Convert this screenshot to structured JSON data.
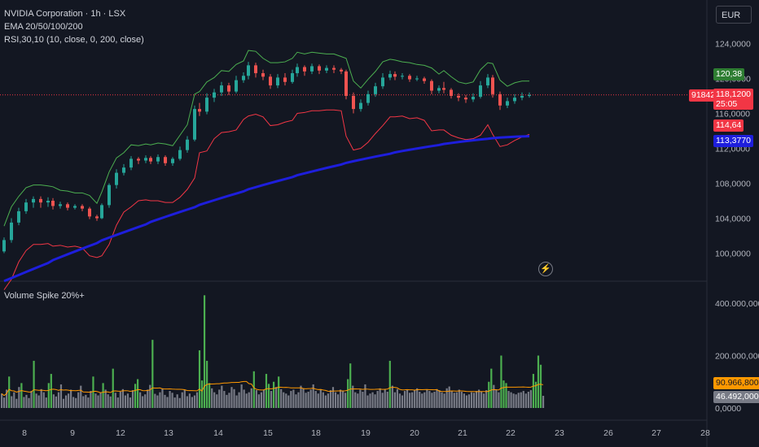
{
  "header": {
    "symbol_line": "NVIDIA Corporation · 1h · LSX",
    "indicator_ema": "EMA 20/50/100/200",
    "indicator_rsi": "RSI,30,10 (10, close, 0, 200, close)",
    "volume_label": "Volume Spike 20%+",
    "currency": "EUR"
  },
  "price_tags": {
    "green_label": "120,38",
    "current_price": "118,1200",
    "countdown": "25:05",
    "left_badge": "918422",
    "red_label": "114,64",
    "ema200_label": "113,3770",
    "volume_ma_label": "90.966,8000",
    "volume_label": "46.492,0000"
  },
  "colors": {
    "background": "#131722",
    "up": "#26a69a",
    "down": "#ef5350",
    "green_line": "#4caf50",
    "red_line": "#f23645",
    "ema200": "#1e1edc",
    "vol_up": "#4caf50",
    "vol_down": "#787b86",
    "vol_ma": "#ff9800"
  },
  "chart_data": [
    {
      "type": "candlestick",
      "y_ticks": [
        "100,0000",
        "104,0000",
        "108,0000",
        "112,0000",
        "116,0000",
        "120,0000",
        "124,0000"
      ],
      "ylim": [
        96.8,
        129.5
      ],
      "x_ticks": [
        "8",
        "9",
        "12",
        "13",
        "14",
        "15",
        "18",
        "19",
        "20",
        "21",
        "22",
        "23",
        "26",
        "27",
        "28"
      ],
      "days": [
        {
          "label": "8",
          "candles": [
            [
              100.2,
              101.5,
              100.0,
              101.8
            ],
            [
              101.5,
              103.5,
              101.2,
              104.0
            ],
            [
              103.5,
              104.8,
              103.2,
              105.2
            ],
            [
              104.8,
              105.8,
              104.5,
              106.2
            ],
            [
              105.8,
              106.2,
              105.2,
              106.5
            ],
            [
              106.2,
              105.8,
              105.2,
              106.5
            ],
            [
              105.8,
              106.0,
              105.3,
              106.4
            ]
          ]
        },
        {
          "label": "9",
          "candles": [
            [
              106.0,
              105.4,
              105.0,
              106.3
            ],
            [
              105.4,
              105.6,
              105.1,
              105.9
            ],
            [
              105.6,
              105.2,
              104.9,
              105.8
            ],
            [
              105.2,
              105.4,
              105.0,
              105.6
            ],
            [
              105.4,
              105.1,
              104.8,
              105.6
            ],
            [
              105.1,
              104.2,
              103.9,
              105.3
            ],
            [
              104.2,
              104.0,
              103.7,
              104.4
            ]
          ]
        },
        {
          "label": "12",
          "candles": [
            [
              104.0,
              105.5,
              103.9,
              105.7
            ],
            [
              105.5,
              107.8,
              105.2,
              108.0
            ],
            [
              107.8,
              109.2,
              107.4,
              109.6
            ],
            [
              109.2,
              109.8,
              108.9,
              110.2
            ],
            [
              109.8,
              110.8,
              109.5,
              111.1
            ],
            [
              110.8,
              110.6,
              110.2,
              111.0
            ],
            [
              110.6,
              110.9,
              110.3,
              111.2
            ]
          ]
        },
        {
          "label": "13",
          "candles": [
            [
              110.9,
              110.5,
              110.2,
              111.1
            ],
            [
              110.5,
              111.0,
              110.2,
              111.3
            ],
            [
              111.0,
              110.3,
              110.0,
              111.2
            ],
            [
              110.3,
              110.8,
              110.0,
              111.0
            ],
            [
              110.8,
              111.8,
              110.6,
              112.2
            ],
            [
              111.8,
              113.0,
              111.5,
              113.4
            ],
            [
              113.0,
              116.5,
              112.8,
              116.9
            ]
          ]
        },
        {
          "label": "14",
          "candles": [
            [
              116.5,
              116.2,
              115.7,
              117.2
            ],
            [
              116.2,
              117.8,
              115.9,
              118.3
            ],
            [
              117.8,
              118.4,
              117.3,
              118.8
            ],
            [
              118.4,
              119.2,
              118.0,
              119.6
            ],
            [
              119.2,
              118.5,
              118.1,
              119.5
            ],
            [
              118.5,
              119.8,
              118.3,
              120.3
            ],
            [
              119.8,
              120.3,
              119.5,
              120.7
            ]
          ]
        },
        {
          "label": "15",
          "candles": [
            [
              120.3,
              121.5,
              119.9,
              121.9
            ],
            [
              121.5,
              120.6,
              120.1,
              121.8
            ],
            [
              120.6,
              120.2,
              119.8,
              121.0
            ],
            [
              120.2,
              119.2,
              118.8,
              120.5
            ],
            [
              119.2,
              120.1,
              118.9,
              120.5
            ],
            [
              120.1,
              119.6,
              119.2,
              120.6
            ],
            [
              119.6,
              120.6,
              119.4,
              121.0
            ]
          ]
        },
        {
          "label": "18",
          "candles": [
            [
              120.6,
              121.3,
              120.2,
              121.7
            ],
            [
              121.3,
              120.8,
              120.3,
              121.5
            ],
            [
              120.8,
              121.4,
              120.5,
              121.7
            ],
            [
              121.4,
              120.9,
              120.5,
              121.6
            ],
            [
              120.9,
              121.2,
              120.6,
              121.5
            ],
            [
              121.2,
              121.0,
              120.6,
              121.5
            ],
            [
              121.0,
              120.8,
              120.5,
              121.2
            ]
          ]
        },
        {
          "label": "19",
          "candles": [
            [
              120.8,
              118.0,
              117.6,
              121.0
            ],
            [
              118.0,
              116.5,
              116.0,
              118.4
            ],
            [
              116.5,
              117.2,
              116.2,
              117.6
            ],
            [
              117.2,
              118.2,
              116.9,
              118.6
            ],
            [
              118.2,
              119.1,
              117.9,
              119.5
            ],
            [
              119.1,
              120.1,
              118.8,
              120.6
            ],
            [
              120.1,
              120.5,
              119.8,
              120.9
            ]
          ]
        },
        {
          "label": "20",
          "candles": [
            [
              120.5,
              120.2,
              119.8,
              120.8
            ],
            [
              120.2,
              120.3,
              119.9,
              120.6
            ],
            [
              120.3,
              119.9,
              119.6,
              120.5
            ],
            [
              119.9,
              120.0,
              119.7,
              120.3
            ],
            [
              120.0,
              119.7,
              119.4,
              120.2
            ],
            [
              119.7,
              118.6,
              118.2,
              119.9
            ],
            [
              118.6,
              118.9,
              118.3,
              119.2
            ]
          ]
        },
        {
          "label": "21",
          "candles": [
            [
              118.9,
              118.7,
              118.3,
              119.6
            ],
            [
              118.7,
              118.0,
              117.7,
              118.9
            ],
            [
              118.0,
              117.8,
              117.4,
              118.3
            ],
            [
              117.8,
              117.6,
              117.2,
              118.1
            ],
            [
              117.6,
              117.9,
              117.3,
              118.3
            ],
            [
              117.9,
              119.2,
              117.7,
              119.7
            ],
            [
              119.2,
              120.1,
              118.9,
              120.5
            ]
          ]
        },
        {
          "label": "22",
          "candles": [
            [
              120.1,
              118.2,
              117.8,
              120.4
            ],
            [
              118.2,
              116.9,
              116.4,
              118.5
            ],
            [
              116.9,
              117.4,
              116.6,
              117.8
            ],
            [
              117.4,
              117.8,
              117.1,
              118.2
            ],
            [
              117.8,
              118.0,
              117.5,
              118.4
            ],
            [
              118.0,
              118.1,
              117.8,
              118.4
            ]
          ]
        }
      ]
    },
    {
      "type": "bar",
      "series_name": "Volume Spike 20%+",
      "y_ticks": [
        "400.000,0000",
        "200.000,0000",
        "0,0000"
      ],
      "ylim": [
        0,
        480000000
      ],
      "values": [
        55000000,
        40000000,
        70000000,
        120000000,
        45000000,
        60000000,
        35000000,
        80000000,
        95000000,
        42000000,
        50000000,
        38000000,
        65000000,
        180000000,
        55000000,
        48000000,
        72000000,
        60000000,
        40000000,
        95000000,
        130000000,
        52000000,
        44000000,
        60000000,
        90000000,
        35000000,
        48000000,
        55000000,
        70000000,
        42000000,
        38000000,
        60000000,
        85000000,
        45000000,
        50000000,
        40000000,
        65000000,
        120000000,
        55000000,
        48000000,
        60000000,
        95000000,
        70000000,
        52000000,
        44000000,
        150000000,
        58000000,
        40000000,
        62000000,
        72000000,
        48000000,
        55000000,
        40000000,
        68000000,
        92000000,
        110000000,
        60000000,
        45000000,
        52000000,
        70000000,
        88000000,
        260000000,
        54000000,
        48000000,
        60000000,
        75000000,
        50000000,
        42000000,
        65000000,
        58000000,
        40000000,
        52000000,
        38000000,
        60000000,
        70000000,
        45000000,
        55000000,
        42000000,
        48000000,
        60000000,
        220000000,
        105000000,
        430000000,
        180000000,
        95000000,
        75000000,
        60000000,
        52000000,
        70000000,
        85000000,
        65000000,
        50000000,
        58000000,
        80000000,
        72000000,
        48000000,
        60000000,
        90000000,
        70000000,
        55000000,
        60000000,
        75000000,
        140000000,
        68000000,
        52000000,
        60000000,
        70000000,
        130000000,
        92000000,
        65000000,
        100000000,
        80000000,
        120000000,
        72000000,
        60000000,
        55000000,
        48000000,
        65000000,
        70000000,
        52000000,
        60000000,
        85000000,
        75000000,
        58000000,
        62000000,
        70000000,
        90000000,
        65000000,
        55000000,
        72000000,
        60000000,
        48000000,
        55000000,
        68000000,
        80000000,
        60000000,
        52000000,
        70000000,
        65000000,
        58000000,
        110000000,
        170000000,
        85000000,
        60000000,
        55000000,
        70000000,
        62000000,
        90000000,
        48000000,
        55000000,
        60000000,
        52000000,
        65000000,
        75000000,
        58000000,
        70000000,
        62000000,
        180000000,
        85000000,
        60000000,
        72000000,
        55000000,
        48000000,
        65000000,
        70000000,
        58000000,
        60000000,
        68000000,
        75000000,
        62000000,
        55000000,
        60000000,
        70000000,
        65000000,
        58000000,
        62000000,
        72000000,
        68000000,
        60000000,
        55000000,
        75000000,
        82000000,
        65000000,
        58000000,
        60000000,
        70000000,
        62000000,
        55000000,
        48000000,
        52000000,
        60000000,
        58000000,
        65000000,
        70000000,
        62000000,
        55000000,
        68000000,
        100000000,
        150000000,
        88000000,
        70000000,
        60000000,
        200000000,
        105000000,
        95000000,
        65000000,
        60000000,
        55000000,
        52000000,
        58000000,
        60000000,
        65000000,
        55000000,
        62000000,
        68000000,
        130000000,
        100000000,
        200000000,
        165000000,
        46492000
      ]
    }
  ]
}
